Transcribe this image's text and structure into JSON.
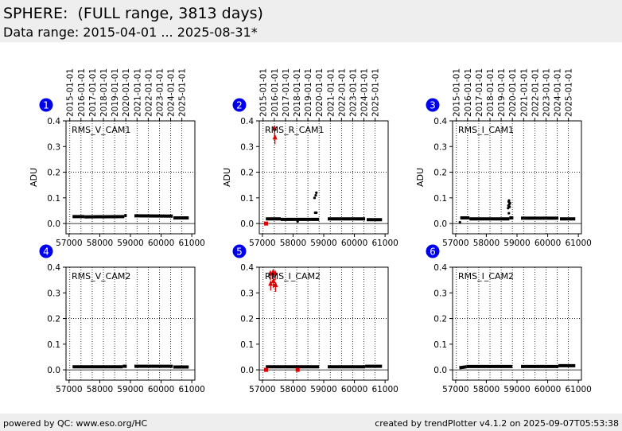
{
  "page": {
    "title": "SPHERE:  (FULL range, 3813 days)",
    "subtitle": "Data range: 2015-04-01 ... 2025-08-31*",
    "footer_left": "powered by QC: www.eso.org/HC",
    "footer_right": "created by trendPlotter v4.1.2 on 2025-09-07T05:53:38"
  },
  "colors": {
    "points": "#000000",
    "outliers": "#dd0000",
    "badge": "#0000ee",
    "grid": "#000000"
  },
  "chart_data": [
    {
      "type": "scatter",
      "panel": "1",
      "label": "RMS_V_CAM1",
      "ylabel": "ADU",
      "xlim": [
        56900,
        61100
      ],
      "ylim": [
        -0.04,
        0.4
      ],
      "xticks": [
        57000,
        58000,
        59000,
        60000,
        61000
      ],
      "yticks": [
        0.0,
        0.1,
        0.2,
        0.3,
        0.4
      ],
      "date_ticks": [
        "2015-01-01",
        "2016-01-01",
        "2017-01-01",
        "2018-01-01",
        "2019-01-01",
        "2020-01-01",
        "2021-01-01",
        "2022-01-01",
        "2023-01-01",
        "2024-01-01",
        "2025-01-01"
      ],
      "show_dates": true,
      "segments": [
        {
          "x0": 57113,
          "x1": 57500,
          "y0": 0.027,
          "y1": 0.027
        },
        {
          "x0": 57500,
          "x1": 58800,
          "y0": 0.026,
          "y1": 0.027
        },
        {
          "x0": 58800,
          "x1": 58880,
          "y0": 0.031,
          "y1": 0.031
        },
        {
          "x0": 59130,
          "x1": 60380,
          "y0": 0.03,
          "y1": 0.029
        },
        {
          "x0": 60400,
          "x1": 60900,
          "y0": 0.022,
          "y1": 0.022
        }
      ],
      "points": [],
      "outliers": []
    },
    {
      "type": "scatter",
      "panel": "2",
      "label": "RMS_R_CAM1",
      "ylabel": "ADU",
      "xlim": [
        56900,
        61100
      ],
      "ylim": [
        -0.04,
        0.4
      ],
      "xticks": [
        57000,
        58000,
        59000,
        60000,
        61000
      ],
      "yticks": [
        0.0,
        0.1,
        0.2,
        0.3,
        0.4
      ],
      "date_ticks": [
        "2015-01-01",
        "2016-01-01",
        "2017-01-01",
        "2018-01-01",
        "2019-01-01",
        "2020-01-01",
        "2021-01-01",
        "2022-01-01",
        "2023-01-01",
        "2024-01-01",
        "2025-01-01"
      ],
      "show_dates": true,
      "segments": [
        {
          "x0": 57113,
          "x1": 57600,
          "y0": 0.018,
          "y1": 0.018
        },
        {
          "x0": 57600,
          "x1": 58850,
          "y0": 0.016,
          "y1": 0.016
        },
        {
          "x0": 59130,
          "x1": 60350,
          "y0": 0.018,
          "y1": 0.018
        },
        {
          "x0": 60400,
          "x1": 60900,
          "y0": 0.015,
          "y1": 0.015
        }
      ],
      "points": [
        [
          58150,
          0.008
        ],
        [
          58700,
          0.1
        ],
        [
          58740,
          0.11
        ],
        [
          58760,
          0.12
        ],
        [
          58720,
          0.042
        ],
        [
          58760,
          0.042
        ]
      ],
      "outliers": [
        [
          57120,
          0.0
        ],
        [
          57400,
          0.375
        ],
        [
          57410,
          0.34
        ]
      ]
    },
    {
      "type": "scatter",
      "panel": "3",
      "label": "RMS_I_CAM1",
      "ylabel": "ADU",
      "xlim": [
        56900,
        61100
      ],
      "ylim": [
        -0.04,
        0.4
      ],
      "xticks": [
        57000,
        58000,
        59000,
        60000,
        61000
      ],
      "yticks": [
        0.0,
        0.1,
        0.2,
        0.3,
        0.4
      ],
      "date_ticks": [
        "2015-01-01",
        "2016-01-01",
        "2017-01-01",
        "2018-01-01",
        "2019-01-01",
        "2020-01-01",
        "2021-01-01",
        "2022-01-01",
        "2023-01-01",
        "2024-01-01",
        "2025-01-01"
      ],
      "show_dates": true,
      "segments": [
        {
          "x0": 57150,
          "x1": 57450,
          "y0": 0.022,
          "y1": 0.022
        },
        {
          "x0": 57450,
          "x1": 58750,
          "y0": 0.018,
          "y1": 0.018
        },
        {
          "x0": 58750,
          "x1": 58880,
          "y0": 0.022,
          "y1": 0.022
        },
        {
          "x0": 59130,
          "x1": 60350,
          "y0": 0.021,
          "y1": 0.021
        },
        {
          "x0": 60400,
          "x1": 60900,
          "y0": 0.018,
          "y1": 0.018
        }
      ],
      "points": [
        [
          57140,
          0.005
        ],
        [
          58710,
          0.06
        ],
        [
          58720,
          0.07
        ],
        [
          58730,
          0.085
        ],
        [
          58740,
          0.09
        ],
        [
          58750,
          0.075
        ],
        [
          58760,
          0.065
        ],
        [
          58770,
          0.08
        ],
        [
          58735,
          0.04
        ]
      ],
      "outliers": []
    },
    {
      "type": "scatter",
      "panel": "4",
      "label": "RMS_V_CAM2",
      "ylabel": "",
      "xlim": [
        56900,
        61100
      ],
      "ylim": [
        -0.04,
        0.4
      ],
      "xticks": [
        57000,
        58000,
        59000,
        60000,
        61000
      ],
      "yticks": [
        0.0,
        0.1,
        0.2,
        0.3,
        0.4
      ],
      "date_ticks": [],
      "show_dates": false,
      "segments": [
        {
          "x0": 57113,
          "x1": 58750,
          "y0": 0.012,
          "y1": 0.012
        },
        {
          "x0": 58750,
          "x1": 58880,
          "y0": 0.014,
          "y1": 0.014
        },
        {
          "x0": 59130,
          "x1": 60380,
          "y0": 0.014,
          "y1": 0.014
        },
        {
          "x0": 60400,
          "x1": 60900,
          "y0": 0.011,
          "y1": 0.011
        }
      ],
      "points": [],
      "outliers": []
    },
    {
      "type": "scatter",
      "panel": "5",
      "label": "RMS_I_CAM2",
      "ylabel": "",
      "xlim": [
        56900,
        61100
      ],
      "ylim": [
        -0.04,
        0.4
      ],
      "xticks": [
        57000,
        58000,
        59000,
        60000,
        61000
      ],
      "yticks": [
        0.0,
        0.1,
        0.2,
        0.3,
        0.4
      ],
      "date_ticks": [],
      "show_dates": false,
      "segments": [
        {
          "x0": 57113,
          "x1": 58850,
          "y0": 0.012,
          "y1": 0.012
        },
        {
          "x0": 59130,
          "x1": 60350,
          "y0": 0.012,
          "y1": 0.012
        },
        {
          "x0": 60350,
          "x1": 60900,
          "y0": 0.014,
          "y1": 0.014
        }
      ],
      "points": [],
      "outliers": [
        [
          57120,
          0.0
        ],
        [
          57260,
          0.38
        ],
        [
          57270,
          0.34
        ],
        [
          57350,
          0.385
        ],
        [
          57360,
          0.35
        ],
        [
          57420,
          0.38
        ],
        [
          57430,
          0.335
        ],
        [
          58150,
          0.0
        ]
      ]
    },
    {
      "type": "scatter",
      "panel": "6",
      "label": "RMS_I_CAM2",
      "ylabel": "",
      "xlim": [
        56900,
        61100
      ],
      "ylim": [
        -0.04,
        0.4
      ],
      "xticks": [
        57000,
        58000,
        59000,
        60000,
        61000
      ],
      "yticks": [
        0.0,
        0.1,
        0.2,
        0.3,
        0.4
      ],
      "date_ticks": [],
      "show_dates": false,
      "segments": [
        {
          "x0": 57120,
          "x1": 57350,
          "y0": 0.008,
          "y1": 0.012
        },
        {
          "x0": 57350,
          "x1": 58850,
          "y0": 0.013,
          "y1": 0.013
        },
        {
          "x0": 59130,
          "x1": 60350,
          "y0": 0.013,
          "y1": 0.013
        },
        {
          "x0": 60350,
          "x1": 60900,
          "y0": 0.016,
          "y1": 0.016
        }
      ],
      "points": [],
      "outliers": []
    }
  ]
}
